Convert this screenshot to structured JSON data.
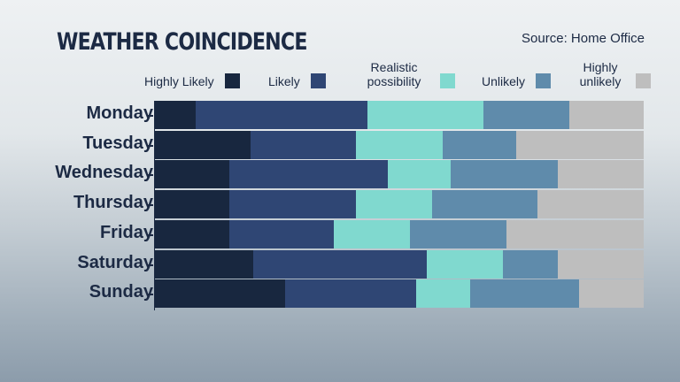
{
  "title": "WEATHER COINCIDENCE",
  "source": "Source: Home Office",
  "chart_data": {
    "type": "bar",
    "stacked": true,
    "orientation": "horizontal",
    "title": "WEATHER COINCIDENCE",
    "xlabel": "",
    "ylabel": "",
    "xlim": [
      0,
      100
    ],
    "legend_position": "top",
    "categories": [
      "Monday",
      "Tuesday",
      "Wednesday",
      "Thursday",
      "Friday",
      "Saturday",
      "Sunday"
    ],
    "series": [
      {
        "name": "Highly Likely",
        "color": "#18273f",
        "values": [
          8.3,
          19.6,
          15.2,
          15.2,
          15.2,
          20.1,
          26.6
        ]
      },
      {
        "name": "Likely",
        "color": "#2f4674",
        "values": [
          35.1,
          21.6,
          32.4,
          25.9,
          21.4,
          35.5,
          26.8
        ]
      },
      {
        "name": "Realistic possibility",
        "color": "#80d9cf",
        "values": [
          23.9,
          17.6,
          13.0,
          15.6,
          15.6,
          15.6,
          11.1
        ]
      },
      {
        "name": "Unlikely",
        "color": "#5f8bab",
        "values": [
          17.4,
          15.2,
          21.9,
          21.6,
          19.7,
          11.2,
          22.3
        ]
      },
      {
        "name": "Highly unlikely",
        "color": "#bebebe",
        "values": [
          15.3,
          26.0,
          17.5,
          21.7,
          28.1,
          17.6,
          13.2
        ]
      }
    ]
  }
}
